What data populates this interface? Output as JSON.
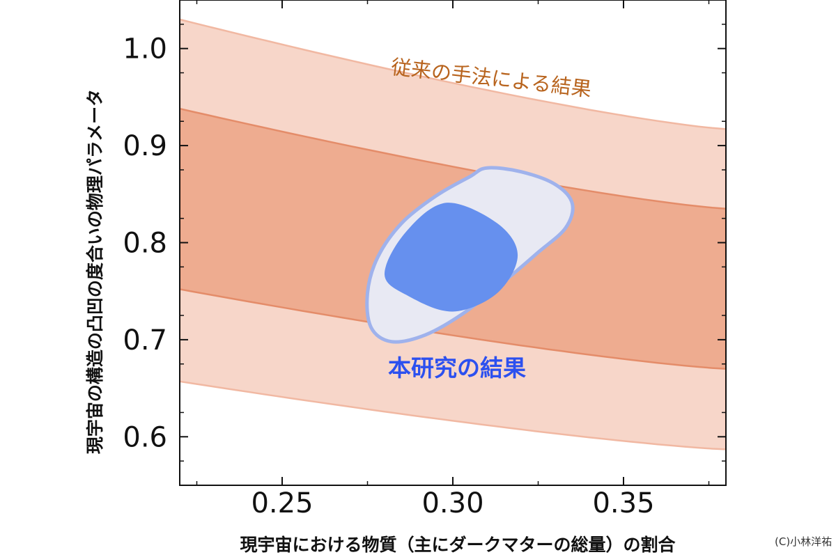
{
  "chart_data": {
    "type": "area",
    "title": "",
    "xlabel": "現宇宙における物質（主にダークマターの総量）の割合",
    "ylabel": "現宇宙の構造の凸凹の度合いの物理パラメータ",
    "xlim": [
      0.22,
      0.38
    ],
    "ylim": [
      0.55,
      1.05
    ],
    "xticks": [
      "0.25",
      "0.30",
      "0.35"
    ],
    "yticks": [
      "0.6",
      "0.7",
      "0.8",
      "0.9",
      "1.0"
    ],
    "grid": false,
    "series": [
      {
        "name": "従来の手法による結果",
        "kind": "band",
        "level": "2-sigma",
        "color": "#f7d6c9",
        "x": [
          0.22,
          0.38
        ],
        "lower": [
          0.657,
          0.587
        ],
        "upper": [
          1.03,
          0.917
        ]
      },
      {
        "name": "従来の手法による結果",
        "kind": "band",
        "level": "1-sigma",
        "color": "#eeac90",
        "x": [
          0.22,
          0.38
        ],
        "lower": [
          0.752,
          0.67
        ],
        "upper": [
          0.938,
          0.835
        ]
      },
      {
        "name": "本研究の結果",
        "kind": "contour",
        "level": "2-sigma",
        "color": "#e8e9f3",
        "edge": "#9fb2ec",
        "center": [
          0.304,
          0.787
        ],
        "x": [
          0.31,
          0.32,
          0.33,
          0.335,
          0.333,
          0.325,
          0.315,
          0.303,
          0.292,
          0.282,
          0.276,
          0.275,
          0.278,
          0.285,
          0.295,
          0.305
        ],
        "y": [
          0.877,
          0.873,
          0.86,
          0.84,
          0.815,
          0.79,
          0.76,
          0.727,
          0.705,
          0.698,
          0.713,
          0.748,
          0.785,
          0.82,
          0.848,
          0.868
        ]
      },
      {
        "name": "本研究の結果",
        "kind": "contour",
        "level": "1-sigma",
        "color": "#6690ee",
        "center": [
          0.298,
          0.785
        ],
        "x": [
          0.298,
          0.313,
          0.319,
          0.313,
          0.3,
          0.287,
          0.28,
          0.286
        ],
        "y": [
          0.841,
          0.82,
          0.787,
          0.748,
          0.729,
          0.745,
          0.767,
          0.81
        ]
      }
    ],
    "annotations": [
      {
        "text": "従来の手法による結果",
        "color": "#b8641e",
        "x": 0.293,
        "y": 0.948,
        "angle": 6.5
      },
      {
        "text": "本研究の結果",
        "color": "#2c50ef",
        "x": 0.296,
        "y": 0.666
      }
    ]
  },
  "credit": "(C)小林洋祐"
}
